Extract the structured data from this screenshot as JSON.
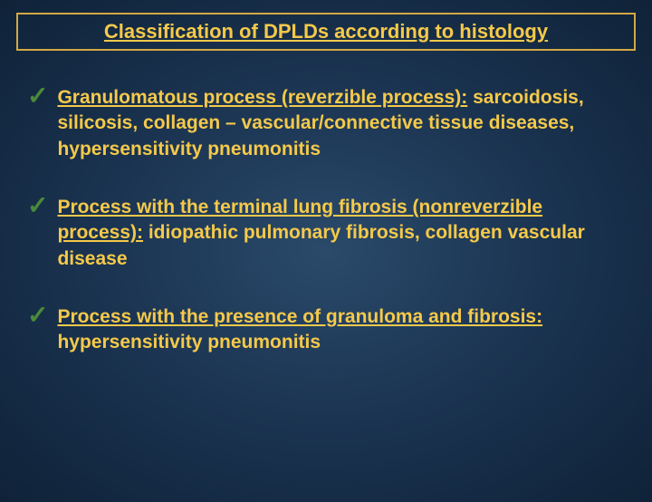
{
  "background_gradient": {
    "center": "#2a4a6a",
    "mid": "#1a3350",
    "edge": "#0f2238"
  },
  "title": {
    "text": "Classification of DPLDs according to histology",
    "color": "#f5c94a",
    "border_color": "#d4a843",
    "fontsize": 22
  },
  "checkmark": {
    "glyph": "✓",
    "color": "#4a8a3a",
    "fontsize": 28
  },
  "item_text_color": "#f5c94a",
  "item_fontsize": 21,
  "items": [
    {
      "heading": "Granulomatous process (reverzible process):",
      "body": "sarcoidosis, silicosis, collagen – vascular/connective tissue diseases, hypersensitivity pneumonitis"
    },
    {
      "heading": "Process with the terminal lung fibrosis (nonreverzible process):",
      "body": "idiopathic pulmonary fibrosis, collagen vascular disease"
    },
    {
      "heading": "Process with the presence of granuloma and fibrosis:",
      "body": " hypersensitivity pneumonitis"
    }
  ]
}
